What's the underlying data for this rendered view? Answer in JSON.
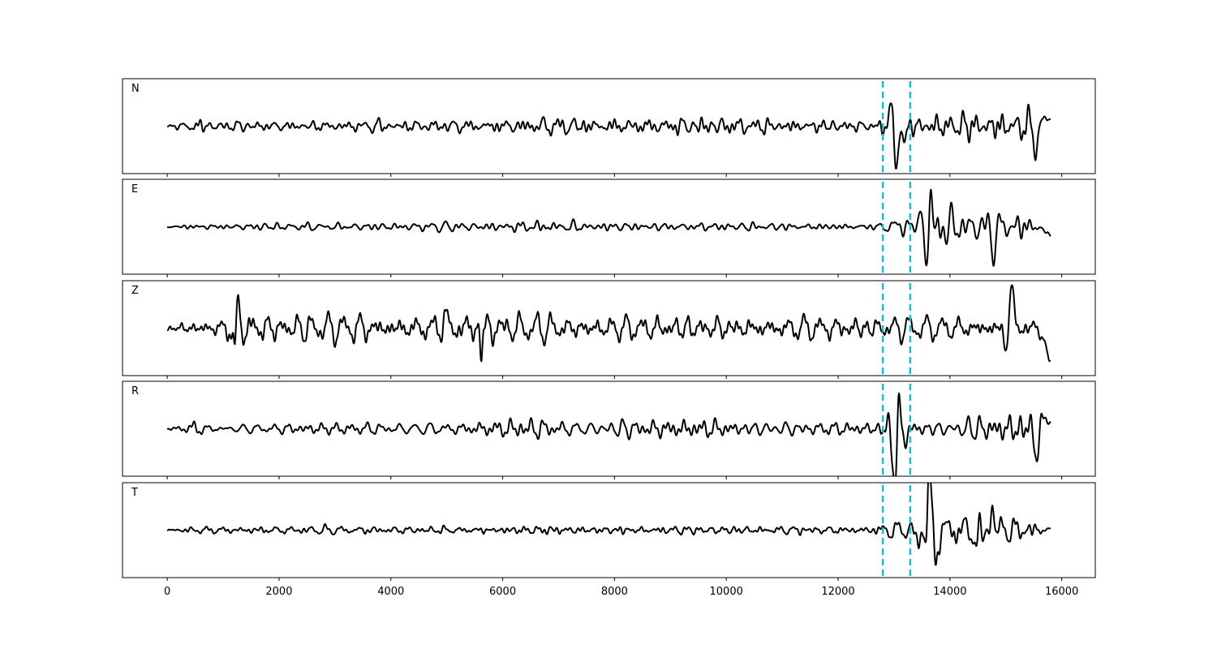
{
  "chart_data": {
    "type": "line",
    "x_unit": "sample index",
    "xlim": [
      -800,
      16600
    ],
    "x_ticks": [
      0,
      2000,
      4000,
      6000,
      8000,
      10000,
      12000,
      14000,
      16000
    ],
    "x_tick_labels": [
      "0",
      "2000",
      "4000",
      "6000",
      "8000",
      "10000",
      "12000",
      "14000",
      "16000"
    ],
    "n_samples": 15800,
    "shared_x_axis": true,
    "grid": false,
    "pick_lines": [
      12800,
      13290
    ],
    "pick_color": "#17becf",
    "trace_color": "#000000",
    "panels": [
      {
        "label": "N",
        "ylim": [
          -1.0,
          1.0
        ],
        "envelope": [
          [
            0,
            0.03
          ],
          [
            300,
            0.08
          ],
          [
            500,
            0.22
          ],
          [
            700,
            0.1
          ],
          [
            2000,
            0.1
          ],
          [
            5400,
            0.14
          ],
          [
            6400,
            0.2
          ],
          [
            9000,
            0.2
          ],
          [
            10000,
            0.22
          ],
          [
            12700,
            0.1
          ],
          [
            12900,
            0.35
          ],
          [
            13000,
            0.65
          ],
          [
            13150,
            0.2
          ],
          [
            13300,
            0.25
          ],
          [
            13500,
            0.25
          ],
          [
            14200,
            0.35
          ],
          [
            14600,
            0.35
          ],
          [
            15600,
            0.35
          ],
          [
            15800,
            0.2
          ]
        ],
        "features": [
          [
            13050,
            -0.95,
            80
          ],
          [
            12980,
            0.7,
            60
          ],
          [
            13200,
            -0.3,
            50
          ],
          [
            15550,
            -0.55,
            60
          ],
          [
            15700,
            0.3,
            60
          ]
        ],
        "end_value": 0.15
      },
      {
        "label": "E",
        "ylim": [
          -1.0,
          1.0
        ],
        "envelope": [
          [
            0,
            0.03
          ],
          [
            700,
            0.08
          ],
          [
            3700,
            0.08
          ],
          [
            6000,
            0.1
          ],
          [
            6500,
            0.18
          ],
          [
            7000,
            0.18
          ],
          [
            7500,
            0.1
          ],
          [
            12600,
            0.08
          ],
          [
            12800,
            0.1
          ],
          [
            13000,
            0.35
          ],
          [
            13200,
            0.15
          ],
          [
            13500,
            0.25
          ],
          [
            13800,
            0.5
          ],
          [
            14000,
            0.4
          ],
          [
            14400,
            0.3
          ],
          [
            14800,
            0.45
          ],
          [
            15500,
            0.3
          ],
          [
            15800,
            0.2
          ]
        ],
        "features": [
          [
            13570,
            -0.8,
            60
          ],
          [
            13650,
            0.85,
            50
          ],
          [
            13450,
            0.25,
            80
          ],
          [
            14780,
            -0.6,
            50
          ],
          [
            13760,
            -0.3,
            40
          ]
        ],
        "end_value": -0.2
      },
      {
        "label": "Z",
        "ylim": [
          -1.0,
          1.0
        ],
        "envelope": [
          [
            0,
            0.1
          ],
          [
            400,
            0.2
          ],
          [
            1000,
            0.25
          ],
          [
            1200,
            0.55
          ],
          [
            1500,
            0.4
          ],
          [
            2200,
            0.3
          ],
          [
            5000,
            0.35
          ],
          [
            5600,
            0.45
          ],
          [
            6200,
            0.3
          ],
          [
            10000,
            0.3
          ],
          [
            12300,
            0.3
          ],
          [
            12800,
            0.25
          ],
          [
            13300,
            0.25
          ],
          [
            15000,
            0.3
          ],
          [
            15800,
            0.25
          ]
        ],
        "features": [
          [
            15100,
            0.95,
            70
          ],
          [
            15000,
            -0.5,
            60
          ],
          [
            15780,
            -0.7,
            30
          ],
          [
            1210,
            -0.55,
            40
          ],
          [
            1280,
            0.55,
            40
          ],
          [
            4960,
            0.45,
            40
          ],
          [
            5620,
            -0.55,
            40
          ]
        ],
        "end_value": -0.7
      },
      {
        "label": "R",
        "ylim": [
          -1.0,
          1.0
        ],
        "envelope": [
          [
            0,
            0.03
          ],
          [
            300,
            0.08
          ],
          [
            500,
            0.22
          ],
          [
            700,
            0.1
          ],
          [
            2000,
            0.1
          ],
          [
            5400,
            0.14
          ],
          [
            6400,
            0.2
          ],
          [
            9000,
            0.2
          ],
          [
            10000,
            0.22
          ],
          [
            12700,
            0.1
          ],
          [
            12900,
            0.35
          ],
          [
            13000,
            0.65
          ],
          [
            13150,
            0.2
          ],
          [
            13300,
            0.25
          ],
          [
            13500,
            0.25
          ],
          [
            14200,
            0.35
          ],
          [
            14600,
            0.35
          ],
          [
            15600,
            0.35
          ],
          [
            15800,
            0.2
          ]
        ],
        "features": [
          [
            13020,
            -0.95,
            80
          ],
          [
            13080,
            0.6,
            60
          ],
          [
            13200,
            -0.3,
            50
          ],
          [
            15550,
            -0.55,
            60
          ],
          [
            15700,
            0.3,
            60
          ]
        ],
        "end_value": 0.15
      },
      {
        "label": "T",
        "ylim": [
          -1.0,
          1.0
        ],
        "envelope": [
          [
            0,
            0.03
          ],
          [
            600,
            0.08
          ],
          [
            6000,
            0.08
          ],
          [
            6500,
            0.15
          ],
          [
            7000,
            0.1
          ],
          [
            12600,
            0.08
          ],
          [
            12900,
            0.2
          ],
          [
            13200,
            0.15
          ],
          [
            13400,
            0.25
          ],
          [
            13600,
            0.85
          ],
          [
            13800,
            0.4
          ],
          [
            14200,
            0.35
          ],
          [
            14800,
            0.35
          ],
          [
            15500,
            0.2
          ],
          [
            15800,
            0.1
          ]
        ],
        "features": [
          [
            13630,
            0.95,
            60
          ],
          [
            13750,
            -0.7,
            50
          ],
          [
            13400,
            -0.25,
            60
          ],
          [
            14780,
            0.4,
            60
          ],
          [
            14470,
            -0.35,
            60
          ]
        ],
        "end_value": 0.03
      }
    ]
  }
}
